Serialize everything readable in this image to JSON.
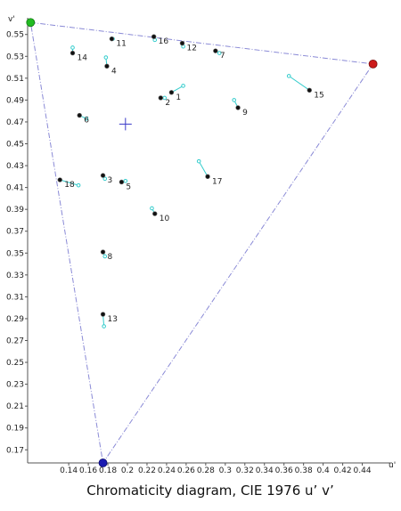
{
  "chart_data": {
    "type": "scatter",
    "title": "Chromaticity diagram, CIE 1976 u’ v’",
    "xlabel": "u'",
    "ylabel": "v'",
    "xlim": [
      0.098,
      0.465
    ],
    "ylim": [
      0.158,
      0.562
    ],
    "xticks": [
      "0.14",
      "0.16",
      "0.18",
      "0.2",
      "0.22",
      "0.24",
      "0.26",
      "0.28",
      "0.3",
      "0.32",
      "0.34",
      "0.36",
      "0.38",
      "0.4",
      "0.42",
      "0.44"
    ],
    "xtick_values": [
      0.14,
      0.16,
      0.18,
      0.2,
      0.22,
      0.24,
      0.26,
      0.28,
      0.3,
      0.32,
      0.34,
      0.36,
      0.38,
      0.4,
      0.42,
      0.44
    ],
    "yticks": [
      "0.17",
      "0.19",
      "0.21",
      "0.23",
      "0.25",
      "0.27",
      "0.29",
      "0.31",
      "0.33",
      "0.35",
      "0.37",
      "0.39",
      "0.41",
      "0.43",
      "0.45",
      "0.47",
      "0.49",
      "0.51",
      "0.53",
      "0.55"
    ],
    "ytick_values": [
      0.17,
      0.19,
      0.21,
      0.23,
      0.25,
      0.27,
      0.29,
      0.31,
      0.33,
      0.35,
      0.37,
      0.39,
      0.41,
      0.43,
      0.45,
      0.47,
      0.49,
      0.51,
      0.53,
      0.55
    ],
    "gamut": {
      "green": [
        0.101,
        0.561
      ],
      "red": [
        0.451,
        0.523
      ],
      "blue": [
        0.175,
        0.158
      ]
    },
    "white_point": [
      0.198,
      0.468
    ],
    "samples": [
      {
        "label": "1",
        "measured": [
          0.245,
          0.497
        ],
        "reference": [
          0.257,
          0.503
        ]
      },
      {
        "label": "2",
        "measured": [
          0.234,
          0.492
        ],
        "reference": [
          0.238,
          0.492
        ]
      },
      {
        "label": "3",
        "measured": [
          0.175,
          0.421
        ],
        "reference": [
          0.177,
          0.418
        ]
      },
      {
        "label": "4",
        "measured": [
          0.179,
          0.521
        ],
        "reference": [
          0.178,
          0.529
        ]
      },
      {
        "label": "5",
        "measured": [
          0.194,
          0.415
        ],
        "reference": [
          0.198,
          0.416
        ]
      },
      {
        "label": "6",
        "measured": [
          0.151,
          0.476
        ],
        "reference": [
          0.158,
          0.473
        ]
      },
      {
        "label": "7",
        "measured": [
          0.29,
          0.535
        ],
        "reference": [
          0.294,
          0.533
        ]
      },
      {
        "label": "8",
        "measured": [
          0.175,
          0.351
        ],
        "reference": [
          0.177,
          0.347
        ]
      },
      {
        "label": "9",
        "measured": [
          0.313,
          0.483
        ],
        "reference": [
          0.309,
          0.49
        ]
      },
      {
        "label": "10",
        "measured": [
          0.228,
          0.386
        ],
        "reference": [
          0.225,
          0.391
        ]
      },
      {
        "label": "11",
        "measured": [
          0.184,
          0.546
        ],
        "reference": [
          0.185,
          0.546
        ]
      },
      {
        "label": "12",
        "measured": [
          0.256,
          0.542
        ],
        "reference": [
          0.257,
          0.539
        ]
      },
      {
        "label": "13",
        "measured": [
          0.175,
          0.294
        ],
        "reference": [
          0.176,
          0.283
        ]
      },
      {
        "label": "14",
        "measured": [
          0.144,
          0.533
        ],
        "reference": [
          0.144,
          0.538
        ]
      },
      {
        "label": "15",
        "measured": [
          0.386,
          0.499
        ],
        "reference": [
          0.365,
          0.512
        ]
      },
      {
        "label": "16",
        "measured": [
          0.227,
          0.548
        ],
        "reference": [
          0.228,
          0.545
        ]
      },
      {
        "label": "17",
        "measured": [
          0.282,
          0.42
        ],
        "reference": [
          0.273,
          0.434
        ]
      },
      {
        "label": "18",
        "measured": [
          0.131,
          0.417
        ],
        "reference": [
          0.15,
          0.412
        ]
      }
    ],
    "colors": {
      "gamut_line": "#8a8ad6",
      "green_primary": "#22bb22",
      "red_primary": "#cc1a1a",
      "blue_primary": "#1a1ab0",
      "measured": "#111111",
      "reference": "#33cccc",
      "white_point": "#3a3ac8",
      "axes": "#555555"
    }
  }
}
